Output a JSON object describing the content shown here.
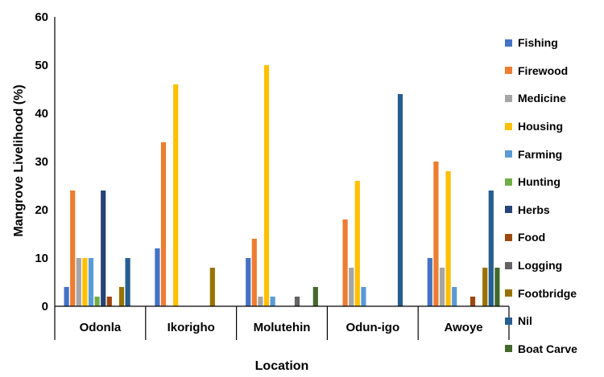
{
  "chart_data": {
    "type": "bar",
    "xlabel": "Location",
    "ylabel": "Mangrove Livelihood (%)",
    "ylim": [
      0,
      60
    ],
    "yticks": [
      0,
      10,
      20,
      30,
      40,
      50,
      60
    ],
    "grid": false,
    "legend_position": "right",
    "categories": [
      "Odonla",
      "Ikorigho",
      "Molutehin",
      "Odun-igo",
      "Awoye"
    ],
    "series": [
      {
        "name": "Fishing",
        "color": "#4472C4",
        "values": [
          4,
          12,
          10,
          0,
          10
        ]
      },
      {
        "name": "Firewood",
        "color": "#ED7D31",
        "values": [
          24,
          34,
          14,
          18,
          30
        ]
      },
      {
        "name": "Medicine",
        "color": "#A5A5A5",
        "values": [
          10,
          0,
          2,
          8,
          8
        ]
      },
      {
        "name": "Housing",
        "color": "#FFC000",
        "values": [
          10,
          46,
          50,
          26,
          28
        ]
      },
      {
        "name": "Farming",
        "color": "#5B9BD5",
        "values": [
          10,
          0,
          2,
          4,
          4
        ]
      },
      {
        "name": "Hunting",
        "color": "#70AD47",
        "values": [
          2,
          0,
          0,
          0,
          0
        ]
      },
      {
        "name": "Herbs",
        "color": "#264478",
        "values": [
          24,
          0,
          0,
          0,
          0
        ]
      },
      {
        "name": "Food",
        "color": "#9E480E",
        "values": [
          2,
          0,
          0,
          0,
          2
        ]
      },
      {
        "name": "Logging",
        "color": "#636363",
        "values": [
          0,
          0,
          2,
          0,
          0
        ]
      },
      {
        "name": "Footbridge",
        "color": "#997300",
        "values": [
          4,
          8,
          0,
          0,
          8
        ]
      },
      {
        "name": "Nil",
        "color": "#255E91",
        "values": [
          10,
          0,
          0,
          44,
          24
        ]
      },
      {
        "name": "Boat Carve",
        "color": "#43682B",
        "values": [
          0,
          0,
          4,
          0,
          8
        ]
      }
    ]
  }
}
